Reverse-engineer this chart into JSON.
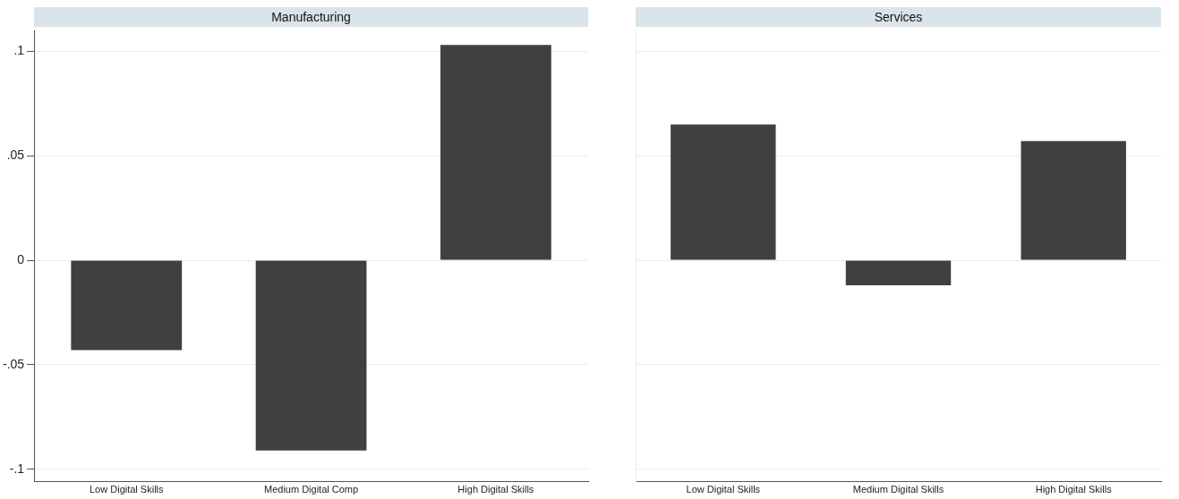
{
  "chart_data": [
    {
      "type": "bar",
      "title": "Manufacturing",
      "categories": [
        "Low Digital Skills",
        "Medium Digital Comp",
        "High Digital Skills"
      ],
      "values": [
        -0.043,
        -0.091,
        0.103
      ],
      "color": "#404040",
      "ylim": [
        -0.106,
        0.11
      ],
      "yticks": [
        {
          "value": -0.1,
          "label": "-.1"
        },
        {
          "value": -0.05,
          "label": "-.05"
        },
        0,
        {
          "value": 0.05,
          "label": ".05"
        },
        {
          "value": 0.1,
          "label": ".1"
        }
      ],
      "grid": "y",
      "legend": false
    },
    {
      "type": "bar",
      "title": "Services",
      "categories": [
        "Low Digital Skills",
        "Medium Digital Skills",
        "High Digital Skills"
      ],
      "values": [
        0.065,
        -0.012,
        0.057
      ],
      "color": "#404040",
      "ylim": [
        -0.106,
        0.11
      ],
      "yticks": [
        {
          "value": -0.1,
          "label": null
        },
        {
          "value": -0.05,
          "label": null
        },
        {
          "value": 0,
          "label": null
        },
        {
          "value": 0.05,
          "label": null
        },
        {
          "value": 0.1,
          "label": null
        }
      ],
      "grid": "y",
      "legend": false,
      "tick_labels": "x"
    }
  ]
}
